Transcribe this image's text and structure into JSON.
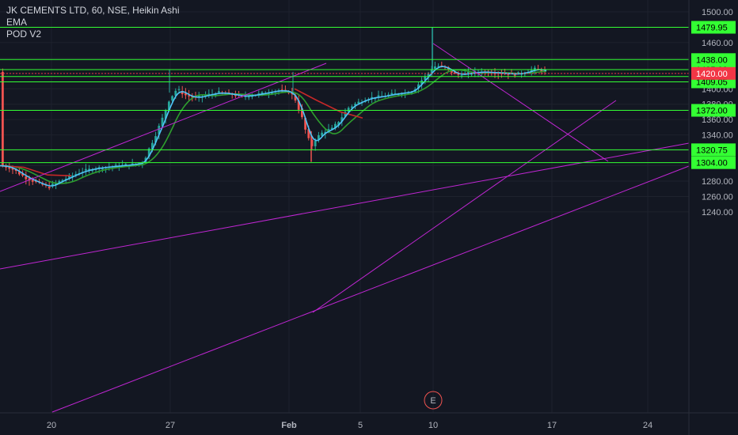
{
  "legend": {
    "title": "JK CEMENTS LTD, 60, NSE, Heikin Ashi",
    "line2": "EMA",
    "line3": "POD V2"
  },
  "colors": {
    "background": "#131722",
    "up_candle": "#26a69a",
    "down_candle": "#ef5350",
    "ema_fast": "#4fc3f7",
    "ema_slow_up": "#2e9e2e",
    "ema_slow_down": "#c62828",
    "level_line": "#33ff33",
    "trend_line": "#c026d3",
    "current_price": "#f23645",
    "tag_bg": "#33ff33"
  },
  "chart_data": {
    "type": "candlestick",
    "title": "JK CEMENTS LTD, 60, NSE, Heikin Ashi",
    "ylim": [
      1238,
      1504
    ],
    "y_ticks": [
      1240,
      1260,
      1280,
      1300,
      1320,
      1340,
      1360,
      1380,
      1400,
      1420,
      1440,
      1460,
      1480,
      1500
    ],
    "x_tick_labels": [
      "20",
      "27",
      "Feb",
      "5",
      "10",
      "17",
      "24"
    ],
    "price_levels": [
      {
        "label": "1479.95",
        "value": 1479.95
      },
      {
        "label": "1438.00",
        "value": 1438.0
      },
      {
        "label": "1425.00",
        "value": 1425.0
      },
      {
        "label": "1416.00",
        "value": 1416.0
      },
      {
        "label": "1409.05",
        "value": 1409.05
      },
      {
        "label": "1372.00",
        "value": 1372.0
      },
      {
        "label": "1320.75",
        "value": 1320.75
      },
      {
        "label": "1304.00",
        "value": 1304.0
      }
    ],
    "current_price": {
      "label": "1420.00",
      "value": 1420.0
    },
    "earnings_marker": "E",
    "series": [
      {
        "name": "EMA"
      },
      {
        "name": "POD V2"
      }
    ]
  }
}
